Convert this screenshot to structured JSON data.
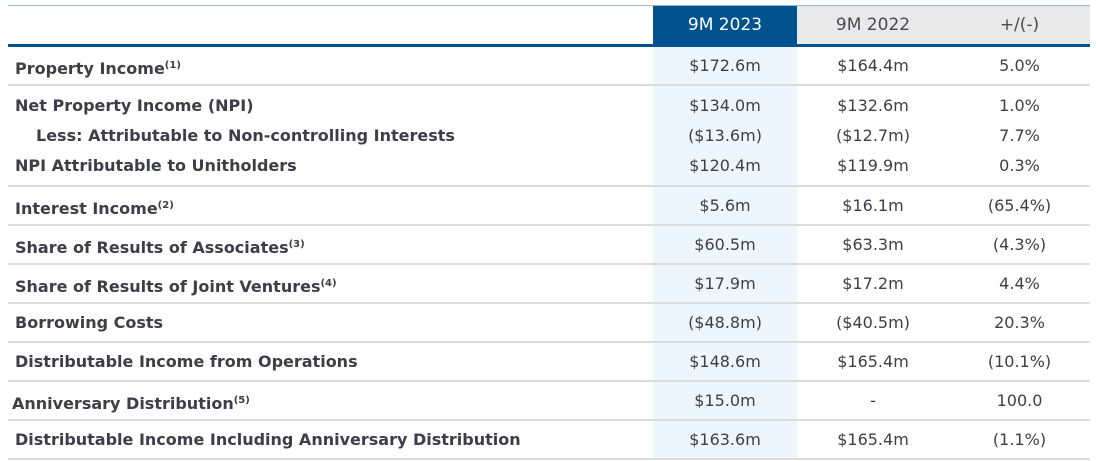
{
  "header": {
    "col1": "9M 2023",
    "col2": "9M 2022",
    "col3": "+/(-)"
  },
  "rows": [
    {
      "label": "Property Income",
      "note": "(1)",
      "v2023": "$172.6m",
      "v2022": "$164.4m",
      "change": "5.0%"
    },
    {
      "label": "Net Property Income (NPI)",
      "v2023": "$134.0m",
      "v2022": "$132.6m",
      "change": "1.0%"
    },
    {
      "label": "Less: Attributable to Non-controlling Interests",
      "v2023": "($13.6m)",
      "v2022": "($12.7m)",
      "change": "7.7%"
    },
    {
      "label": "NPI Attributable to Unitholders",
      "v2023": "$120.4m",
      "v2022": "$119.9m",
      "change": "0.3%"
    },
    {
      "label": "Interest Income",
      "note": "(2)",
      "v2023": "$5.6m",
      "v2022": "$16.1m",
      "change": "(65.4%)"
    },
    {
      "label": "Share of Results of Associates",
      "note": "(3)",
      "v2023": "$60.5m",
      "v2022": "$63.3m",
      "change": "(4.3%)"
    },
    {
      "label": "Share of Results of Joint Ventures",
      "note": "(4)",
      "v2023": "$17.9m",
      "v2022": "$17.2m",
      "change": "4.4%"
    },
    {
      "label": "Borrowing Costs",
      "v2023": "($48.8m)",
      "v2022": "($40.5m)",
      "change": "20.3%"
    },
    {
      "label": "Distributable Income from Operations",
      "v2023": "$148.6m",
      "v2022": "$165.4m",
      "change": "(10.1%)"
    },
    {
      "label": "Anniversary Distribution",
      "note": "(5)",
      "v2023": "$15.0m",
      "v2022": "-",
      "change": "100.0"
    },
    {
      "label": "Distributable Income Including Anniversary Distribution",
      "v2023": "$163.6m",
      "v2022": "$165.4m",
      "change": "(1.1%)"
    }
  ],
  "colors": {
    "header_blue": "#00528f",
    "header_gray": "#e9e9e9",
    "highlight_col": "#eef6fd",
    "text": "#3d3e48"
  }
}
